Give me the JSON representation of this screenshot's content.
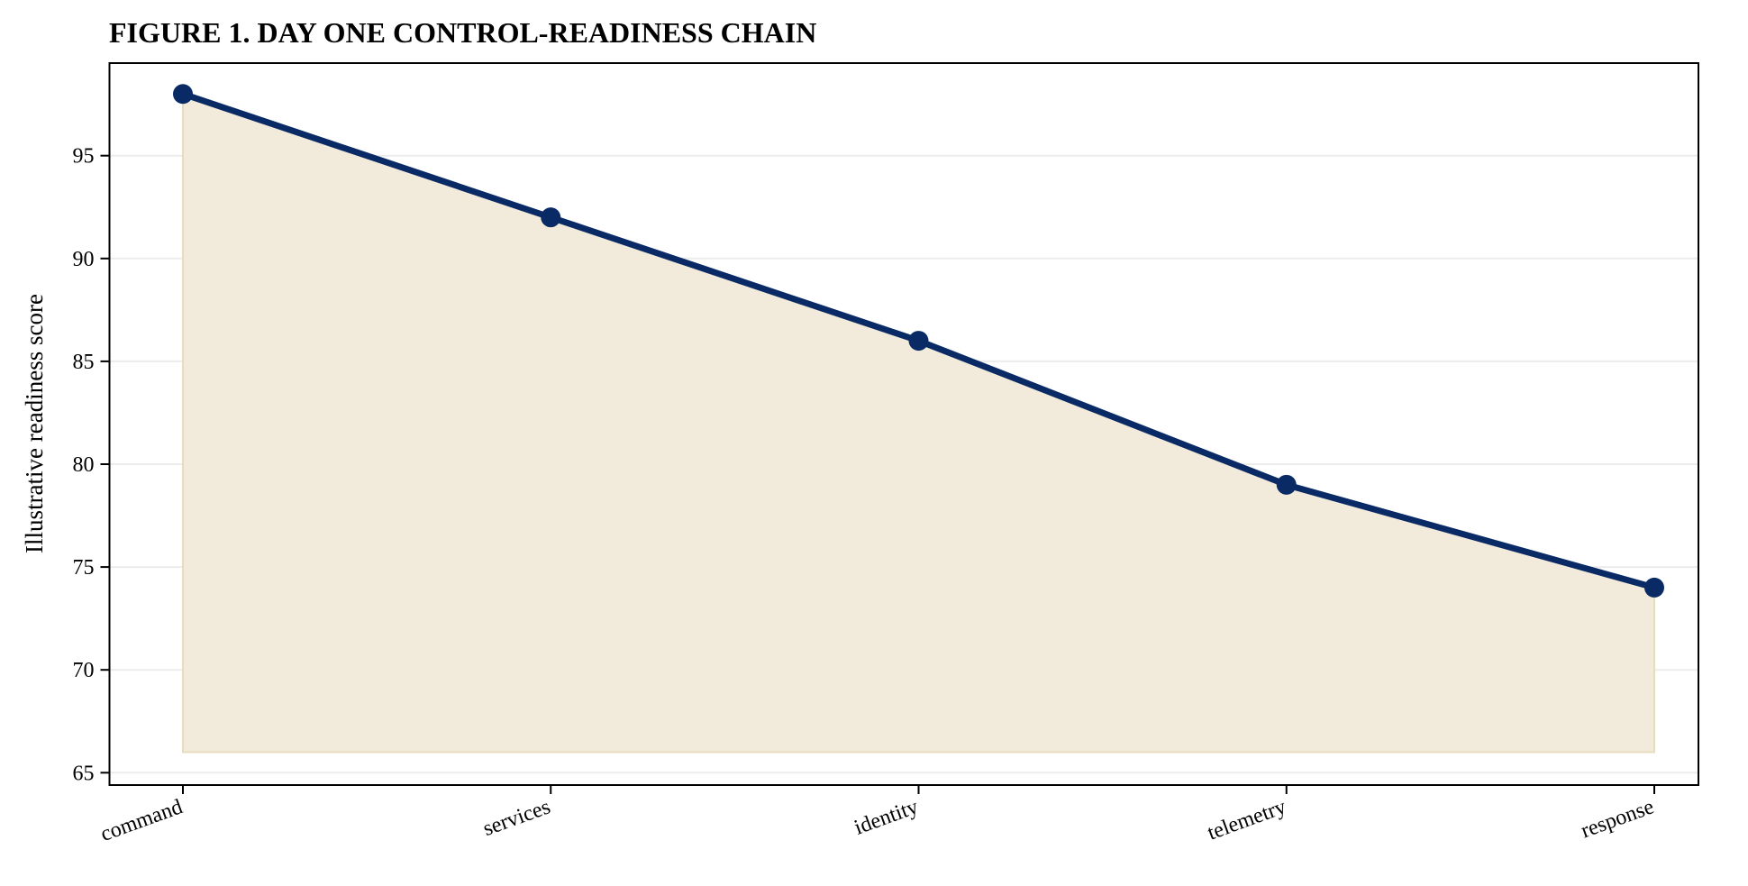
{
  "chart_data": {
    "type": "area",
    "title": "FIGURE 1. DAY ONE CONTROL-READINESS CHAIN",
    "xlabel": "",
    "ylabel": "Illustrative readiness score",
    "categories": [
      "command",
      "services",
      "identity",
      "telemetry",
      "response"
    ],
    "series": [
      {
        "values": [
          98,
          92,
          86,
          79,
          74
        ],
        "line_color": "#0a2a66",
        "fill_color": "#f2eadb",
        "fill_edge_color": "#e8dcbf"
      }
    ],
    "fill_baseline": 66,
    "ylim": [
      64.4,
      99.5
    ],
    "yticks": [
      65,
      70,
      75,
      80,
      85,
      90,
      95
    ],
    "grid": "horizontal",
    "legend": "none"
  }
}
